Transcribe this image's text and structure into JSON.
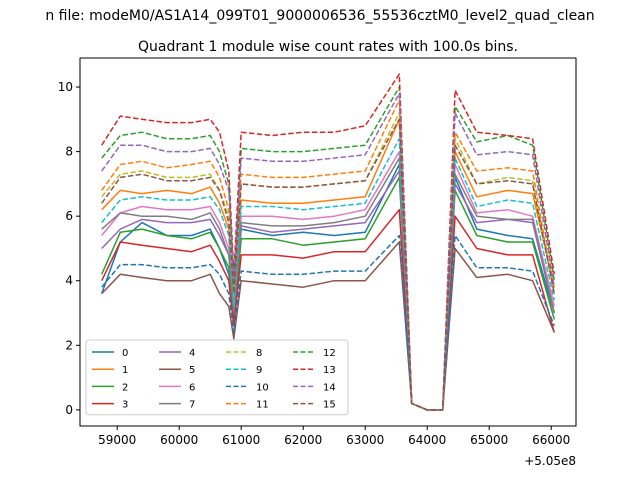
{
  "figure": {
    "suptitle": "n file: modeM0/AS1A14_099T01_9000006536_55536cztM0_level2_quad_clean",
    "axis_offset_label": "+5.05e8"
  },
  "chart_data": {
    "type": "line",
    "title": "Quadrant 1 module wise count rates with 100.0s bins.",
    "xlabel": "",
    "ylabel": "",
    "x_offset": 505000000,
    "xlim": [
      58400,
      66400
    ],
    "ylim": [
      -0.5,
      10.9
    ],
    "x_ticks": [
      59000,
      60000,
      61000,
      62000,
      63000,
      64000,
      65000,
      66000
    ],
    "x_tick_labels": [
      "59000",
      "60000",
      "61000",
      "62000",
      "63000",
      "64000",
      "65000",
      "66000"
    ],
    "y_ticks": [
      0,
      2,
      4,
      6,
      8,
      10
    ],
    "y_tick_labels": [
      "0",
      "2",
      "4",
      "6",
      "8",
      "10"
    ],
    "grid": false,
    "legend": {
      "position": "lower-left",
      "columns": 4
    },
    "series": [
      {
        "name": "0",
        "color": "#1f77b4",
        "style": "solid",
        "values": [
          3.6,
          5.2,
          5.8,
          5.4,
          5.4,
          5.6,
          5.0,
          4.2,
          3.0,
          5.6,
          5.4,
          5.5,
          5.4,
          5.5,
          7.6,
          0.2,
          0.0,
          0.0,
          7.2,
          5.6,
          5.4,
          5.3,
          3.0
        ]
      },
      {
        "name": "1",
        "color": "#ff7f0e",
        "style": "solid",
        "values": [
          6.2,
          6.8,
          6.7,
          6.8,
          6.7,
          6.9,
          6.4,
          5.6,
          3.4,
          6.5,
          6.4,
          6.4,
          6.5,
          6.6,
          9.0,
          0.2,
          0.0,
          0.0,
          8.0,
          6.6,
          6.8,
          6.7,
          3.8
        ]
      },
      {
        "name": "2",
        "color": "#2ca02c",
        "style": "solid",
        "values": [
          4.2,
          5.5,
          5.6,
          5.4,
          5.3,
          5.5,
          5.0,
          4.4,
          2.8,
          5.3,
          5.3,
          5.1,
          5.2,
          5.3,
          7.2,
          0.2,
          0.0,
          0.0,
          6.8,
          5.4,
          5.2,
          5.2,
          2.8
        ]
      },
      {
        "name": "3",
        "color": "#d62728",
        "style": "solid",
        "values": [
          4.0,
          5.2,
          5.1,
          5.0,
          4.9,
          5.1,
          4.6,
          4.0,
          2.6,
          4.8,
          4.8,
          4.7,
          4.9,
          4.9,
          6.2,
          0.2,
          0.0,
          0.0,
          6.0,
          5.0,
          4.8,
          4.8,
          2.4
        ]
      },
      {
        "name": "4",
        "color": "#9467bd",
        "style": "solid",
        "values": [
          5.0,
          5.6,
          5.9,
          5.8,
          5.8,
          5.9,
          5.4,
          4.8,
          3.0,
          5.7,
          5.5,
          5.6,
          5.7,
          5.8,
          7.4,
          0.2,
          0.0,
          0.0,
          7.0,
          5.8,
          5.9,
          5.8,
          3.0
        ]
      },
      {
        "name": "5",
        "color": "#8c564b",
        "style": "solid",
        "values": [
          3.6,
          4.2,
          4.1,
          4.0,
          4.0,
          4.2,
          3.6,
          3.2,
          2.2,
          4.0,
          3.9,
          3.8,
          4.0,
          4.0,
          5.2,
          0.2,
          0.0,
          0.0,
          5.0,
          4.1,
          4.2,
          4.0,
          2.4
        ]
      },
      {
        "name": "6",
        "color": "#e377c2",
        "style": "solid",
        "values": [
          5.4,
          6.1,
          6.3,
          6.2,
          6.2,
          6.3,
          5.8,
          5.0,
          3.2,
          6.0,
          6.0,
          5.9,
          6.0,
          6.2,
          8.0,
          0.2,
          0.0,
          0.0,
          7.6,
          6.1,
          6.2,
          6.0,
          3.2
        ]
      },
      {
        "name": "7",
        "color": "#7f7f7f",
        "style": "solid",
        "values": [
          5.6,
          6.1,
          6.0,
          6.0,
          5.9,
          6.1,
          5.6,
          4.8,
          3.0,
          5.8,
          5.7,
          5.7,
          5.8,
          6.0,
          7.8,
          0.2,
          0.0,
          0.0,
          7.3,
          6.0,
          5.9,
          5.9,
          3.0
        ]
      },
      {
        "name": "8",
        "color": "#bcbd22",
        "style": "dashed",
        "values": [
          6.6,
          7.3,
          7.4,
          7.2,
          7.2,
          7.3,
          6.8,
          6.0,
          3.6,
          7.0,
          6.9,
          6.9,
          7.0,
          7.1,
          9.2,
          0.2,
          0.0,
          0.0,
          8.4,
          7.0,
          7.2,
          7.1,
          3.6
        ]
      },
      {
        "name": "9",
        "color": "#17becf",
        "style": "dashed",
        "values": [
          5.8,
          6.5,
          6.6,
          6.5,
          6.5,
          6.6,
          6.2,
          5.4,
          3.2,
          6.3,
          6.3,
          6.2,
          6.3,
          6.4,
          8.4,
          0.2,
          0.0,
          0.0,
          7.8,
          6.3,
          6.5,
          6.4,
          3.4
        ]
      },
      {
        "name": "10",
        "color": "#1f77b4",
        "style": "dashed",
        "values": [
          3.8,
          4.5,
          4.5,
          4.4,
          4.4,
          4.5,
          4.2,
          3.6,
          2.4,
          4.3,
          4.2,
          4.2,
          4.3,
          4.3,
          5.4,
          0.2,
          0.0,
          0.0,
          5.4,
          4.4,
          4.4,
          4.3,
          2.6
        ]
      },
      {
        "name": "11",
        "color": "#ff7f0e",
        "style": "dashed",
        "values": [
          6.8,
          7.6,
          7.7,
          7.5,
          7.6,
          7.7,
          7.2,
          6.2,
          3.8,
          7.3,
          7.2,
          7.2,
          7.3,
          7.4,
          9.6,
          0.2,
          0.0,
          0.0,
          8.6,
          7.4,
          7.5,
          7.4,
          3.6
        ]
      },
      {
        "name": "12",
        "color": "#2ca02c",
        "style": "dashed",
        "values": [
          7.8,
          8.5,
          8.6,
          8.4,
          8.4,
          8.5,
          8.0,
          7.0,
          4.0,
          8.1,
          8.0,
          8.0,
          8.1,
          8.2,
          10.0,
          0.2,
          0.0,
          0.0,
          9.4,
          8.3,
          8.5,
          8.2,
          4.0
        ]
      },
      {
        "name": "13",
        "color": "#d62728",
        "style": "dashed",
        "values": [
          8.2,
          9.1,
          9.0,
          8.9,
          8.9,
          9.0,
          8.6,
          7.4,
          4.2,
          8.6,
          8.5,
          8.6,
          8.6,
          8.8,
          10.4,
          0.2,
          0.0,
          0.0,
          9.9,
          8.6,
          8.5,
          8.4,
          4.2
        ]
      },
      {
        "name": "14",
        "color": "#9467bd",
        "style": "dashed",
        "values": [
          7.4,
          8.2,
          8.2,
          8.0,
          8.0,
          8.1,
          7.6,
          6.8,
          4.0,
          7.8,
          7.7,
          7.7,
          7.8,
          7.9,
          9.8,
          0.2,
          0.0,
          0.0,
          9.2,
          7.9,
          8.0,
          7.9,
          3.8
        ]
      },
      {
        "name": "15",
        "color": "#8c564b",
        "style": "dashed",
        "values": [
          6.4,
          7.2,
          7.3,
          7.1,
          7.1,
          7.2,
          6.8,
          5.8,
          3.6,
          7.0,
          6.9,
          6.9,
          7.0,
          7.1,
          9.0,
          0.2,
          0.0,
          0.0,
          8.2,
          7.0,
          7.1,
          7.0,
          3.6
        ]
      }
    ],
    "x": [
      58750,
      59050,
      59400,
      59800,
      60200,
      60500,
      60650,
      60800,
      60880,
      61000,
      61500,
      62000,
      62500,
      63000,
      63550,
      63750,
      64000,
      64250,
      64450,
      64800,
      65300,
      65700,
      66050
    ]
  }
}
